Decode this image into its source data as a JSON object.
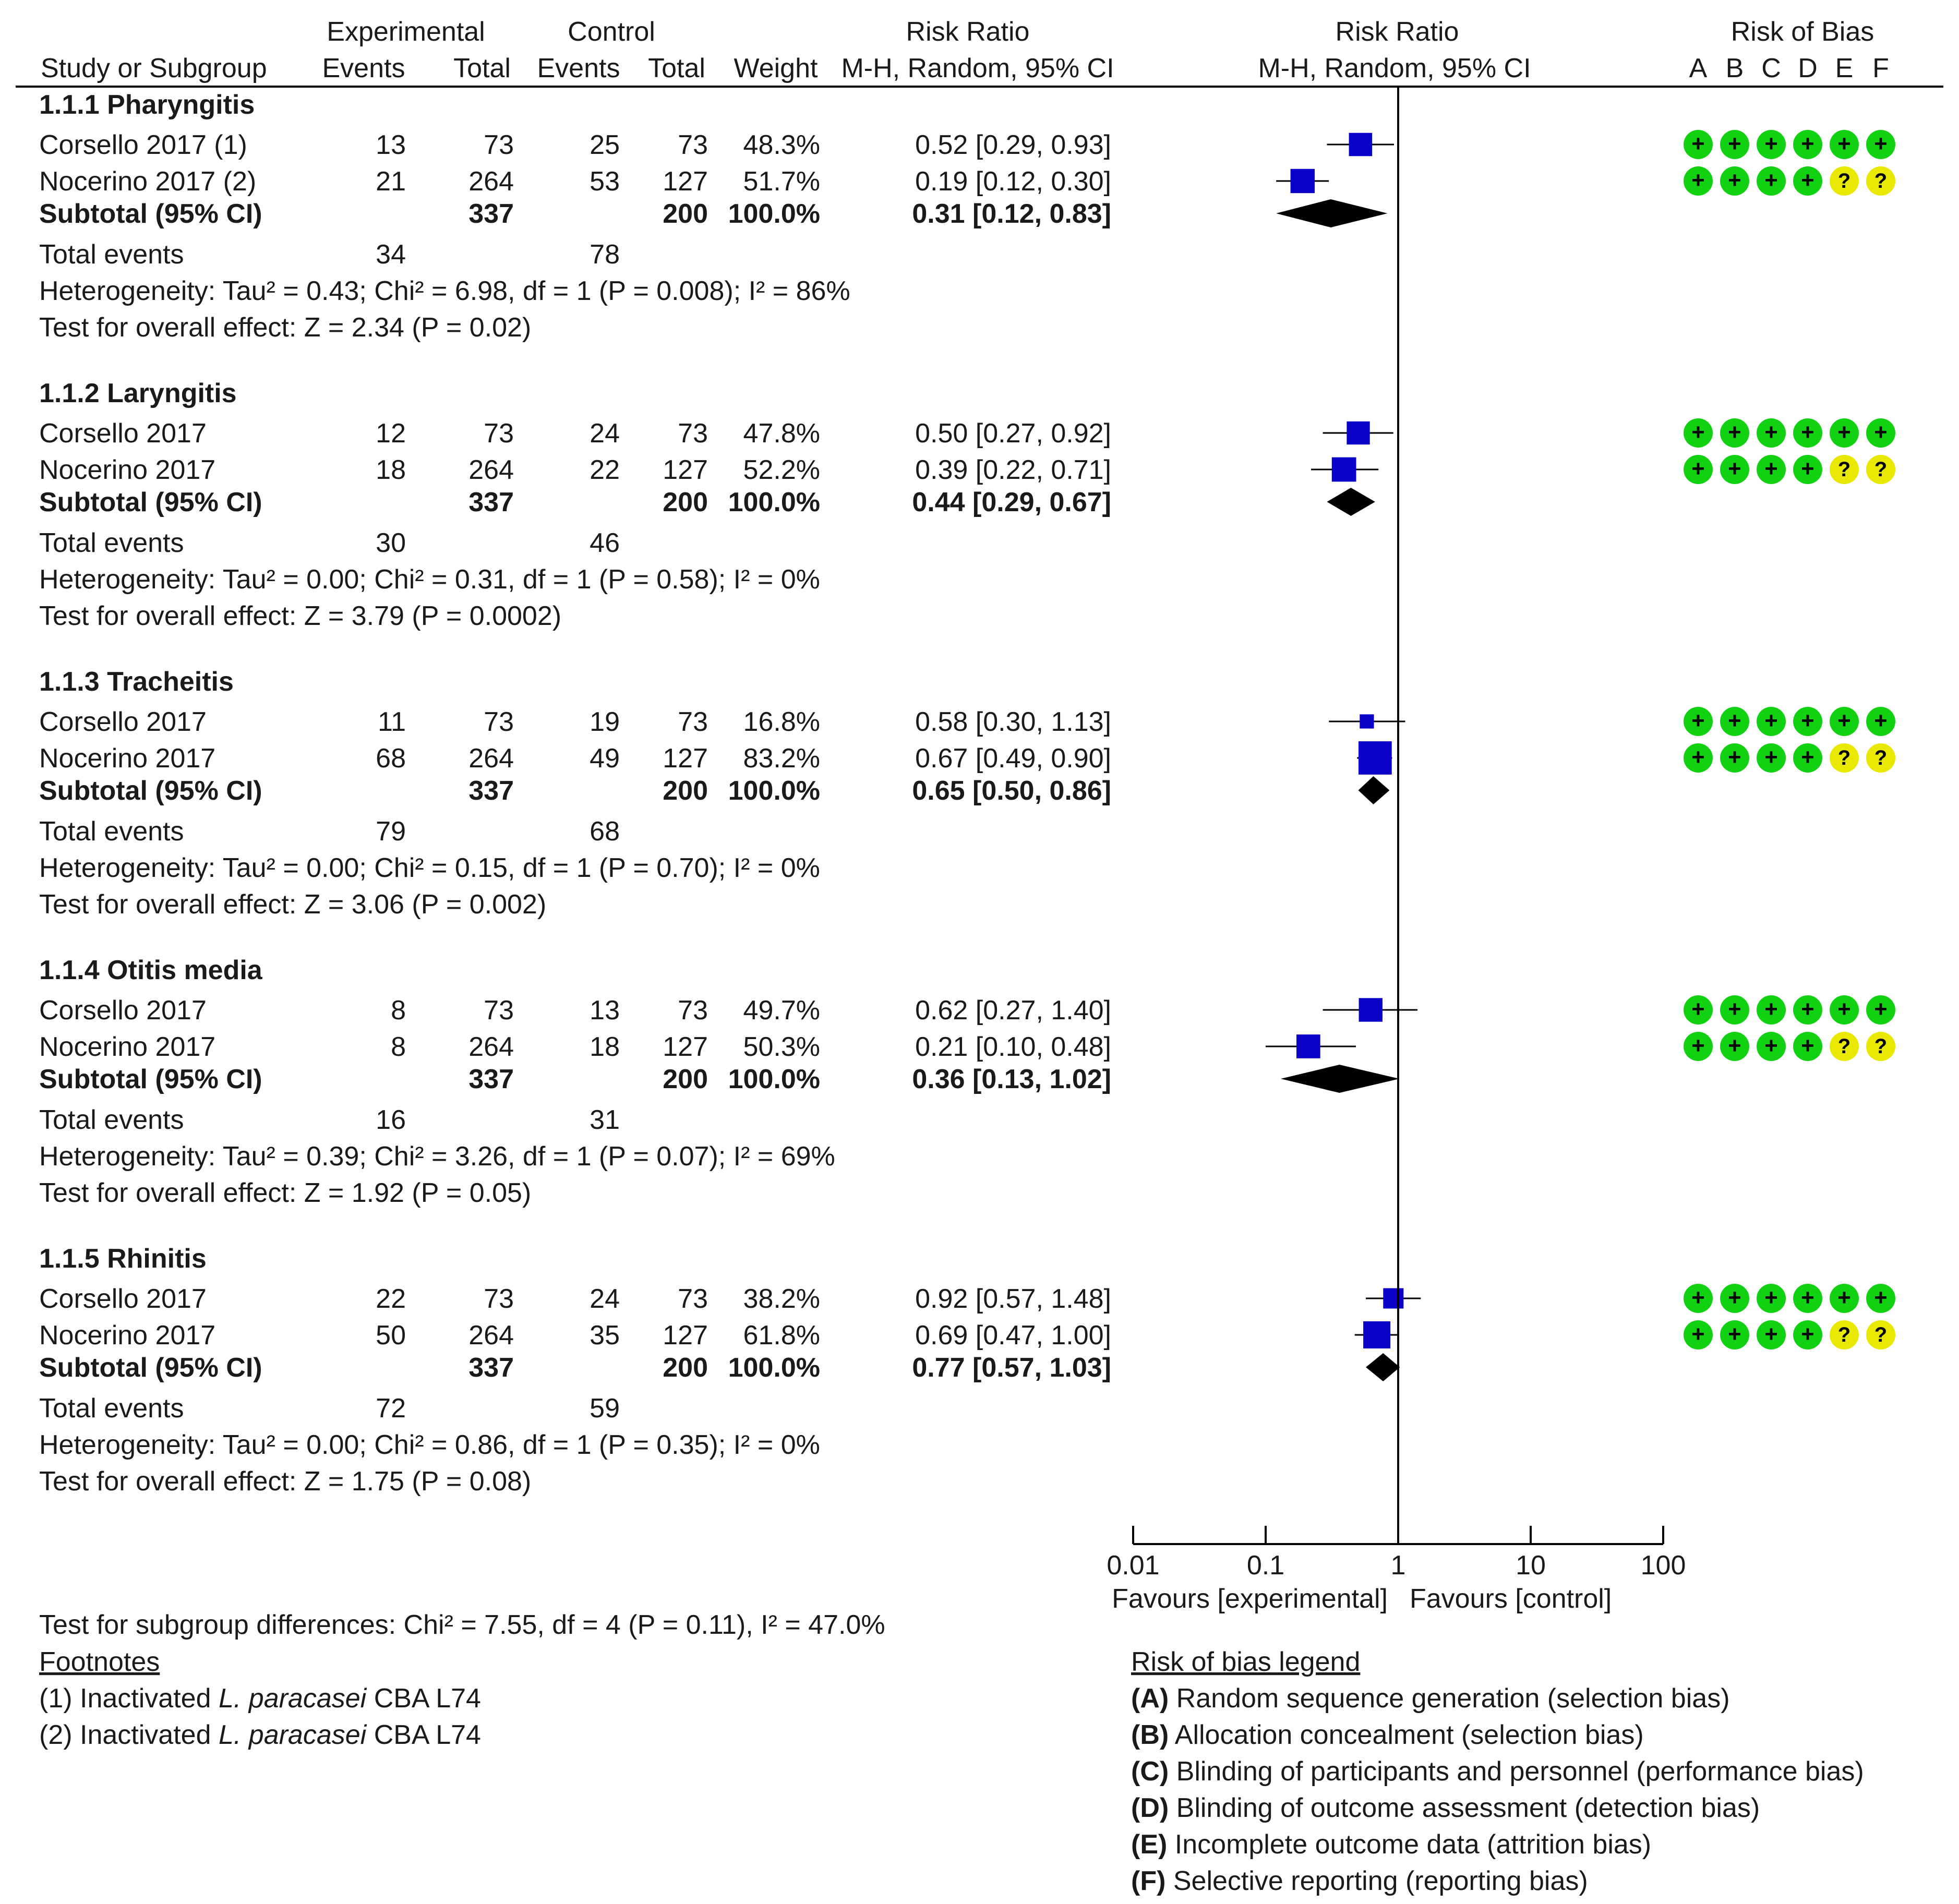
{
  "header": {
    "experimental": "Experimental",
    "control": "Control",
    "risk_ratio": "Risk Ratio",
    "risk_ratio_plot": "Risk Ratio",
    "risk_of_bias": "Risk of Bias",
    "study_or_subgroup": "Study or Subgroup",
    "events": "Events",
    "total": "Total",
    "weight": "Weight",
    "method": "M-H, Random, 95% CI",
    "method_plot": "M-H, Random, 95% CI",
    "bias_letters": [
      "A",
      "B",
      "C",
      "D",
      "E",
      "F"
    ]
  },
  "chart_data": {
    "type": "forest",
    "measure": "Risk Ratio",
    "x_scale": "log",
    "xlim": [
      0.01,
      100
    ],
    "ticks": [
      "0.01",
      "0.1",
      "1",
      "10",
      "100"
    ],
    "null_line": 1,
    "favours_left": "Favours [experimental]",
    "favours_right": "Favours [control]",
    "subgroups": [
      {
        "title": "1.1.1 Pharyngitis",
        "studies": [
          {
            "name": "Corsello 2017 (1)",
            "e_events": "13",
            "e_total": "73",
            "c_events": "25",
            "c_total": "73",
            "weight": "48.3%",
            "ci_text": "0.52 [0.29, 0.93]",
            "rr": 0.52,
            "lo": 0.29,
            "hi": 0.93,
            "w": 48.3,
            "bias": [
              "+",
              "+",
              "+",
              "+",
              "+",
              "+"
            ]
          },
          {
            "name": "Nocerino 2017 (2)",
            "e_events": "21",
            "e_total": "264",
            "c_events": "53",
            "c_total": "127",
            "weight": "51.7%",
            "ci_text": "0.19 [0.12, 0.30]",
            "rr": 0.19,
            "lo": 0.12,
            "hi": 0.3,
            "w": 51.7,
            "bias": [
              "+",
              "+",
              "+",
              "+",
              "?",
              "?"
            ]
          }
        ],
        "subtotal": {
          "label": "Subtotal (95% CI)",
          "e_total": "337",
          "c_total": "200",
          "weight": "100.0%",
          "ci_text": "0.31 [0.12, 0.83]",
          "rr": 0.31,
          "lo": 0.12,
          "hi": 0.83
        },
        "total_events": {
          "label": "Total events",
          "e": "34",
          "c": "78"
        },
        "heterogeneity": "Heterogeneity: Tau² = 0.43; Chi² = 6.98, df = 1 (P = 0.008); I² = 86%",
        "overall": "Test for overall effect: Z = 2.34 (P = 0.02)"
      },
      {
        "title": "1.1.2 Laryngitis",
        "studies": [
          {
            "name": "Corsello 2017",
            "e_events": "12",
            "e_total": "73",
            "c_events": "24",
            "c_total": "73",
            "weight": "47.8%",
            "ci_text": "0.50 [0.27, 0.92]",
            "rr": 0.5,
            "lo": 0.27,
            "hi": 0.92,
            "w": 47.8,
            "bias": [
              "+",
              "+",
              "+",
              "+",
              "+",
              "+"
            ]
          },
          {
            "name": "Nocerino 2017",
            "e_events": "18",
            "e_total": "264",
            "c_events": "22",
            "c_total": "127",
            "weight": "52.2%",
            "ci_text": "0.39 [0.22, 0.71]",
            "rr": 0.39,
            "lo": 0.22,
            "hi": 0.71,
            "w": 52.2,
            "bias": [
              "+",
              "+",
              "+",
              "+",
              "?",
              "?"
            ]
          }
        ],
        "subtotal": {
          "label": "Subtotal (95% CI)",
          "e_total": "337",
          "c_total": "200",
          "weight": "100.0%",
          "ci_text": "0.44 [0.29, 0.67]",
          "rr": 0.44,
          "lo": 0.29,
          "hi": 0.67
        },
        "total_events": {
          "label": "Total events",
          "e": "30",
          "c": "46"
        },
        "heterogeneity": "Heterogeneity: Tau² = 0.00; Chi² = 0.31, df = 1 (P = 0.58); I² = 0%",
        "overall": "Test for overall effect: Z = 3.79 (P = 0.0002)"
      },
      {
        "title": "1.1.3 Tracheitis",
        "studies": [
          {
            "name": "Corsello 2017",
            "e_events": "11",
            "e_total": "73",
            "c_events": "19",
            "c_total": "73",
            "weight": "16.8%",
            "ci_text": "0.58 [0.30, 1.13]",
            "rr": 0.58,
            "lo": 0.3,
            "hi": 1.13,
            "w": 16.8,
            "bias": [
              "+",
              "+",
              "+",
              "+",
              "+",
              "+"
            ]
          },
          {
            "name": "Nocerino 2017",
            "e_events": "68",
            "e_total": "264",
            "c_events": "49",
            "c_total": "127",
            "weight": "83.2%",
            "ci_text": "0.67 [0.49, 0.90]",
            "rr": 0.67,
            "lo": 0.49,
            "hi": 0.9,
            "w": 83.2,
            "bias": [
              "+",
              "+",
              "+",
              "+",
              "?",
              "?"
            ]
          }
        ],
        "subtotal": {
          "label": "Subtotal (95% CI)",
          "e_total": "337",
          "c_total": "200",
          "weight": "100.0%",
          "ci_text": "0.65 [0.50, 0.86]",
          "rr": 0.65,
          "lo": 0.5,
          "hi": 0.86
        },
        "total_events": {
          "label": "Total events",
          "e": "79",
          "c": "68"
        },
        "heterogeneity": "Heterogeneity: Tau² = 0.00; Chi² = 0.15, df = 1 (P = 0.70); I² = 0%",
        "overall": "Test for overall effect: Z = 3.06 (P = 0.002)"
      },
      {
        "title": "1.1.4 Otitis media",
        "studies": [
          {
            "name": "Corsello 2017",
            "e_events": "8",
            "e_total": "73",
            "c_events": "13",
            "c_total": "73",
            "weight": "49.7%",
            "ci_text": "0.62 [0.27, 1.40]",
            "rr": 0.62,
            "lo": 0.27,
            "hi": 1.4,
            "w": 49.7,
            "bias": [
              "+",
              "+",
              "+",
              "+",
              "+",
              "+"
            ]
          },
          {
            "name": "Nocerino 2017",
            "e_events": "8",
            "e_total": "264",
            "c_events": "18",
            "c_total": "127",
            "weight": "50.3%",
            "ci_text": "0.21 [0.10, 0.48]",
            "rr": 0.21,
            "lo": 0.1,
            "hi": 0.48,
            "w": 50.3,
            "bias": [
              "+",
              "+",
              "+",
              "+",
              "?",
              "?"
            ]
          }
        ],
        "subtotal": {
          "label": "Subtotal (95% CI)",
          "e_total": "337",
          "c_total": "200",
          "weight": "100.0%",
          "ci_text": "0.36 [0.13, 1.02]",
          "rr": 0.36,
          "lo": 0.13,
          "hi": 1.02
        },
        "total_events": {
          "label": "Total events",
          "e": "16",
          "c": "31"
        },
        "heterogeneity": "Heterogeneity: Tau² = 0.39; Chi² = 3.26, df = 1 (P = 0.07); I² = 69%",
        "overall": "Test for overall effect: Z = 1.92 (P = 0.05)"
      },
      {
        "title": "1.1.5 Rhinitis",
        "studies": [
          {
            "name": "Corsello 2017",
            "e_events": "22",
            "e_total": "73",
            "c_events": "24",
            "c_total": "73",
            "weight": "38.2%",
            "ci_text": "0.92 [0.57, 1.48]",
            "rr": 0.92,
            "lo": 0.57,
            "hi": 1.48,
            "w": 38.2,
            "bias": [
              "+",
              "+",
              "+",
              "+",
              "+",
              "+"
            ]
          },
          {
            "name": "Nocerino 2017",
            "e_events": "50",
            "e_total": "264",
            "c_events": "35",
            "c_total": "127",
            "weight": "61.8%",
            "ci_text": "0.69 [0.47, 1.00]",
            "rr": 0.69,
            "lo": 0.47,
            "hi": 1.0,
            "w": 61.8,
            "bias": [
              "+",
              "+",
              "+",
              "+",
              "?",
              "?"
            ]
          }
        ],
        "subtotal": {
          "label": "Subtotal (95% CI)",
          "e_total": "337",
          "c_total": "200",
          "weight": "100.0%",
          "ci_text": "0.77 [0.57, 1.03]",
          "rr": 0.77,
          "lo": 0.57,
          "hi": 1.03
        },
        "total_events": {
          "label": "Total events",
          "e": "72",
          "c": "59"
        },
        "heterogeneity": "Heterogeneity: Tau² = 0.00; Chi² = 0.86, df = 1 (P = 0.35); I² = 0%",
        "overall": "Test for overall effect: Z = 1.75 (P = 0.08)"
      }
    ],
    "subgroup_test": "Test for subgroup differences: Chi² = 7.55, df = 4 (P = 0.11), I² = 47.0%"
  },
  "footnotes": {
    "title": "Footnotes",
    "items": [
      {
        "prefix": "(1) Inactivated ",
        "italic": "L. paracasei",
        "suffix": " CBA L74"
      },
      {
        "prefix": "(2) Inactivated ",
        "italic": "L. paracasei",
        "suffix": " CBA L74"
      }
    ]
  },
  "bias_legend": {
    "title": "Risk of bias legend",
    "items": [
      {
        "letter": "(A)",
        "text": " Random sequence generation (selection bias)"
      },
      {
        "letter": "(B)",
        "text": " Allocation concealment (selection bias)"
      },
      {
        "letter": "(C)",
        "text": " Blinding of participants and personnel (performance bias)"
      },
      {
        "letter": "(D)",
        "text": " Blinding of outcome assessment (detection bias)"
      },
      {
        "letter": "(E)",
        "text": " Incomplete outcome data (attrition bias)"
      },
      {
        "letter": "(F)",
        "text": " Selective reporting (reporting bias)"
      }
    ]
  },
  "colors": {
    "text": "#1a1a1a",
    "study_square": "#0a00c8",
    "diamond": "#000000",
    "axis": "#000000",
    "bias_low": "#12d012",
    "bias_unclear": "#e8e800"
  }
}
